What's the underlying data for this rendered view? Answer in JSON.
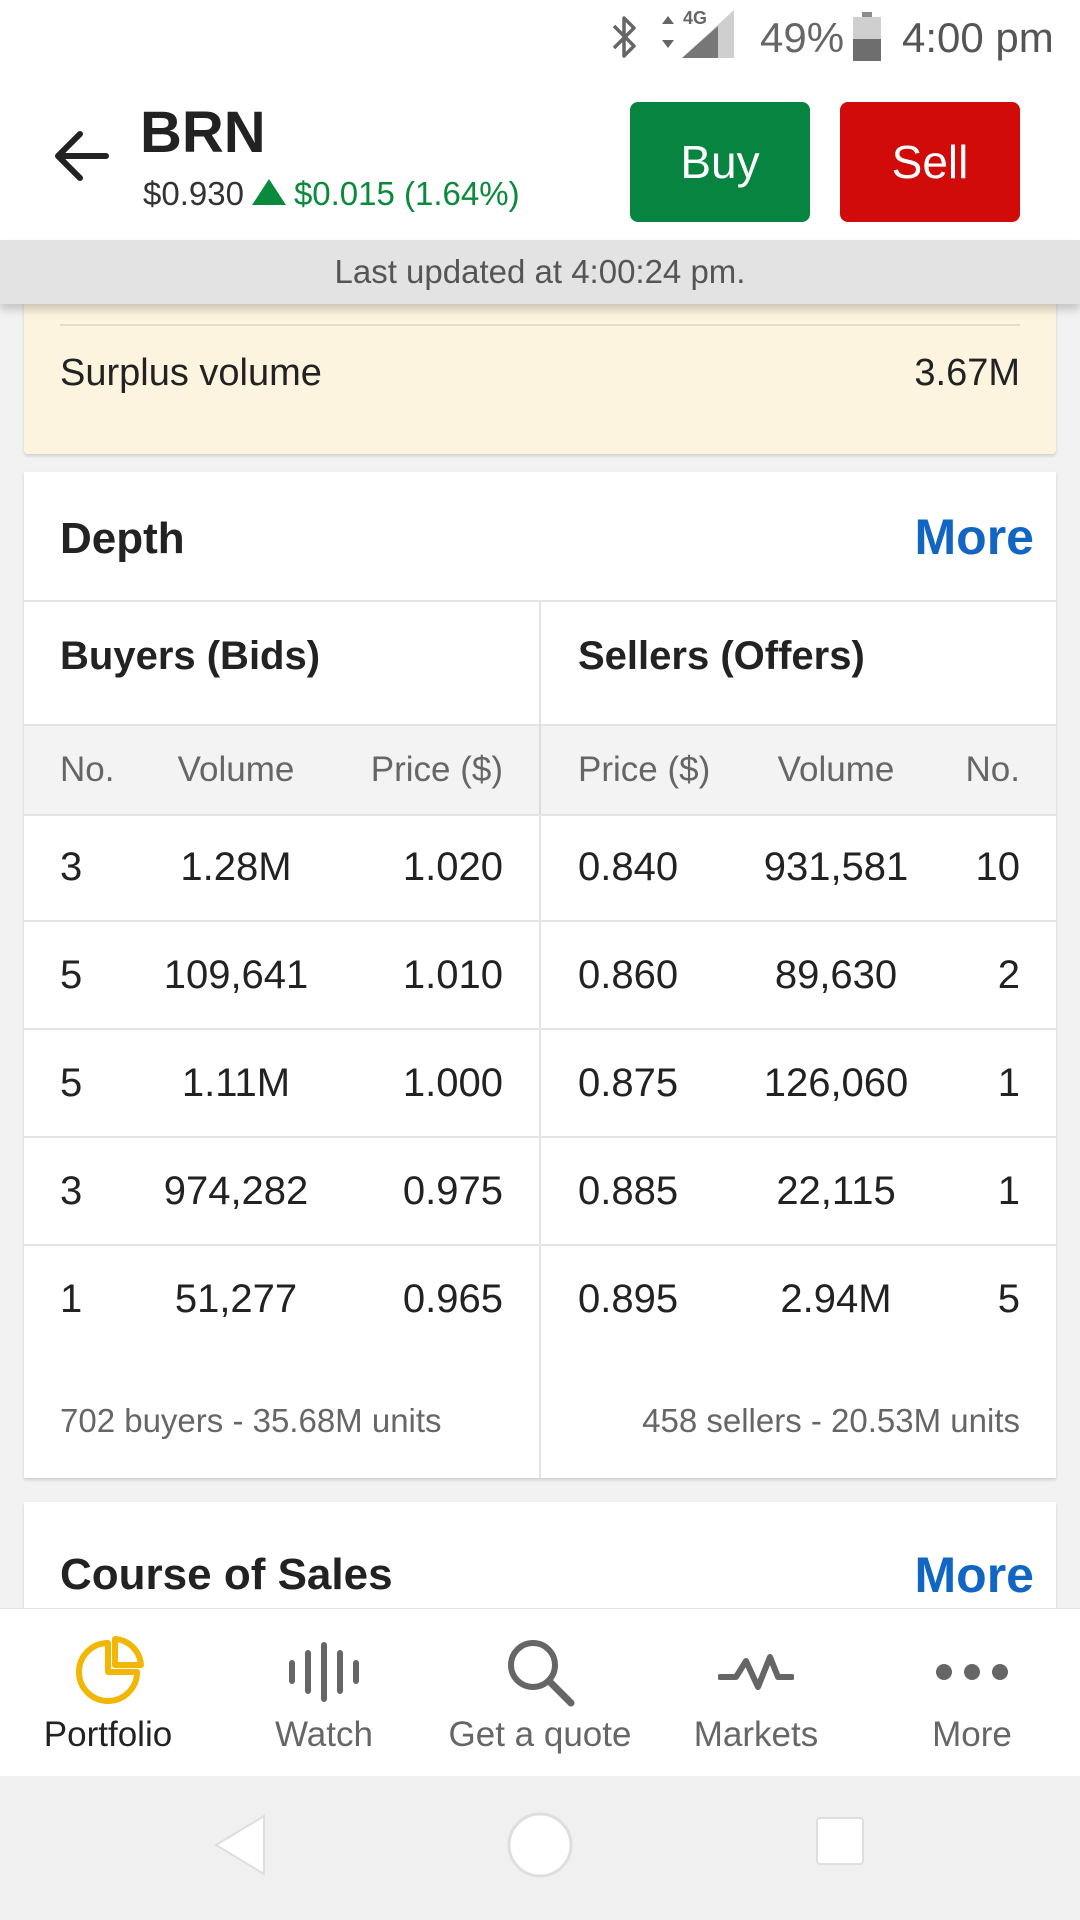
{
  "status_bar": {
    "network_label": "4G",
    "battery_percent": "49%",
    "time": "4:00 pm",
    "battery_level": 0.49
  },
  "header": {
    "ticker": "BRN",
    "last_price": "$0.930",
    "change": "$0.015 (1.64%)",
    "buy_label": "Buy",
    "sell_label": "Sell",
    "up_color": "#0a8a3c",
    "buy_color": "#07843f",
    "sell_color": "#d10a0a"
  },
  "last_updated": "Last updated at 4:00:24 pm.",
  "surplus": {
    "label": "Surplus volume",
    "value": "3.67M"
  },
  "depth": {
    "title": "Depth",
    "more_label": "More",
    "buyers_title": "Buyers (Bids)",
    "sellers_title": "Sellers (Offers)",
    "buyer_columns": [
      "No.",
      "Volume",
      "Price ($)"
    ],
    "seller_columns": [
      "Price ($)",
      "Volume",
      "No."
    ],
    "rows": [
      {
        "bid_no": "3",
        "bid_volume": "1.28M",
        "bid_price": "1.020",
        "offer_price": "0.840",
        "offer_volume": "931,581",
        "offer_no": "10"
      },
      {
        "bid_no": "5",
        "bid_volume": "109,641",
        "bid_price": "1.010",
        "offer_price": "0.860",
        "offer_volume": "89,630",
        "offer_no": "2"
      },
      {
        "bid_no": "5",
        "bid_volume": "1.11M",
        "bid_price": "1.000",
        "offer_price": "0.875",
        "offer_volume": "126,060",
        "offer_no": "1"
      },
      {
        "bid_no": "3",
        "bid_volume": "974,282",
        "bid_price": "0.975",
        "offer_price": "0.885",
        "offer_volume": "22,115",
        "offer_no": "1"
      },
      {
        "bid_no": "1",
        "bid_volume": "51,277",
        "bid_price": "0.965",
        "offer_price": "0.895",
        "offer_volume": "2.94M",
        "offer_no": "5"
      }
    ],
    "buyers_summary": "702 buyers - 35.68M units",
    "sellers_summary": "458 sellers - 20.53M units"
  },
  "course_of_sales": {
    "title": "Course of Sales",
    "more_label": "More"
  },
  "bottom_nav": {
    "items": [
      {
        "label": "Portfolio",
        "icon": "portfolio-pie-icon",
        "active": true
      },
      {
        "label": "Watch",
        "icon": "watch-bars-icon",
        "active": false
      },
      {
        "label": "Get a quote",
        "icon": "search-icon",
        "active": false
      },
      {
        "label": "Markets",
        "icon": "markets-pulse-icon",
        "active": false
      },
      {
        "label": "More",
        "icon": "more-dots-icon",
        "active": false
      }
    ],
    "active_color": "#f2b705"
  },
  "system_nav": {
    "icons": [
      "back-triangle-icon",
      "home-circle-icon",
      "recents-square-icon"
    ]
  }
}
